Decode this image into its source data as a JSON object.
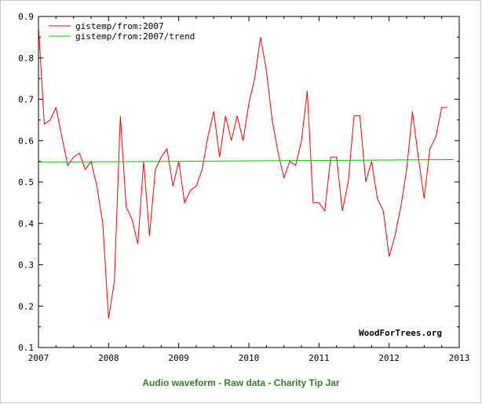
{
  "chart_data": {
    "type": "line",
    "title": "",
    "xlabel": "",
    "ylabel": "",
    "xlim": [
      2007,
      2013
    ],
    "ylim": [
      0.1,
      0.9
    ],
    "x_ticks": [
      "2007",
      "2008",
      "2009",
      "2010",
      "2011",
      "2012",
      "2013"
    ],
    "y_ticks": [
      "0.1",
      "0.2",
      "0.3",
      "0.4",
      "0.5",
      "0.6",
      "0.7",
      "0.8",
      "0.9"
    ],
    "legend_position": "top-left",
    "series": [
      {
        "name": "gistemp/from:2007",
        "color": "#ff0000",
        "x": [
          2007.0,
          2007.083,
          2007.167,
          2007.25,
          2007.333,
          2007.417,
          2007.5,
          2007.583,
          2007.667,
          2007.75,
          2007.833,
          2007.917,
          2008.0,
          2008.083,
          2008.167,
          2008.25,
          2008.333,
          2008.417,
          2008.5,
          2008.583,
          2008.667,
          2008.75,
          2008.833,
          2008.917,
          2009.0,
          2009.083,
          2009.167,
          2009.25,
          2009.333,
          2009.417,
          2009.5,
          2009.583,
          2009.667,
          2009.75,
          2009.833,
          2009.917,
          2010.0,
          2010.083,
          2010.167,
          2010.25,
          2010.333,
          2010.417,
          2010.5,
          2010.583,
          2010.667,
          2010.75,
          2010.833,
          2010.917,
          2011.0,
          2011.083,
          2011.167,
          2011.25,
          2011.333,
          2011.417,
          2011.5,
          2011.583,
          2011.667,
          2011.75,
          2011.833,
          2011.917,
          2012.0,
          2012.083,
          2012.167,
          2012.25,
          2012.333,
          2012.417,
          2012.5,
          2012.583,
          2012.667,
          2012.75,
          2012.833
        ],
        "values": [
          0.88,
          0.64,
          0.65,
          0.68,
          0.61,
          0.54,
          0.56,
          0.57,
          0.53,
          0.55,
          0.49,
          0.4,
          0.17,
          0.26,
          0.66,
          0.44,
          0.41,
          0.35,
          0.55,
          0.37,
          0.53,
          0.56,
          0.58,
          0.49,
          0.55,
          0.45,
          0.48,
          0.49,
          0.53,
          0.61,
          0.67,
          0.56,
          0.66,
          0.6,
          0.66,
          0.6,
          0.69,
          0.75,
          0.85,
          0.77,
          0.65,
          0.57,
          0.51,
          0.55,
          0.54,
          0.6,
          0.72,
          0.45,
          0.45,
          0.43,
          0.56,
          0.56,
          0.43,
          0.5,
          0.66,
          0.66,
          0.5,
          0.55,
          0.46,
          0.43,
          0.32,
          0.37,
          0.44,
          0.53,
          0.67,
          0.56,
          0.46,
          0.58,
          0.61,
          0.68,
          0.68
        ]
      },
      {
        "name": "gistemp/from:2007/trend",
        "color": "#00c000",
        "x": [
          2007.0,
          2012.917
        ],
        "values": [
          0.548,
          0.554
        ]
      }
    ],
    "watermark": "WoodForTrees.org"
  },
  "footer": {
    "link1": "Audio waveform",
    "sep1": " - ",
    "link2": "Raw data",
    "sep2": " - ",
    "link3": "Charity Tip Jar"
  }
}
